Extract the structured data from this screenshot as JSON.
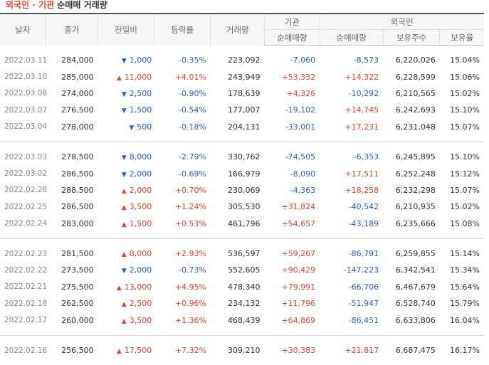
{
  "title": {
    "part1": "외국인 · 기관",
    "part2": " 순매매 거래량"
  },
  "headers": {
    "date": "날자",
    "close": "종가",
    "change": "전일비",
    "rate": "등락률",
    "volume": "거래량",
    "inst_group": "기관",
    "foreign_group": "외국인",
    "inst_net": "순매매량",
    "foreign_net": "순매매량",
    "foreign_hold": "보유주수",
    "foreign_ratio": "보유율"
  },
  "colors": {
    "up": "#e5412d",
    "down": "#2a5dd6"
  },
  "groups": [
    [
      {
        "date": "2022.03.11",
        "close": "284,000",
        "dir": "down",
        "change": "1,000",
        "rate": "-0.35%",
        "volume": "223,092",
        "inst": "-7,060",
        "foreign": "-8,573",
        "hold": "6,220,026",
        "ratio": "15.04%"
      },
      {
        "date": "2022.03.10",
        "close": "285,000",
        "dir": "up",
        "change": "11,000",
        "rate": "+4.01%",
        "volume": "243,949",
        "inst": "+53,332",
        "foreign": "+14,322",
        "hold": "6,228,599",
        "ratio": "15.06%"
      },
      {
        "date": "2022.03.08",
        "close": "274,000",
        "dir": "down",
        "change": "2,500",
        "rate": "-0.90%",
        "volume": "178,639",
        "inst": "+4,326",
        "foreign": "-10,292",
        "hold": "6,210,565",
        "ratio": "15.02%"
      },
      {
        "date": "2022.03.07",
        "close": "276,500",
        "dir": "down",
        "change": "1,500",
        "rate": "-0.54%",
        "volume": "177,007",
        "inst": "-19,102",
        "foreign": "+14,745",
        "hold": "6,242,693",
        "ratio": "15.10%"
      },
      {
        "date": "2022.03.04",
        "close": "278,000",
        "dir": "down",
        "change": "500",
        "rate": "-0.18%",
        "volume": "204,131",
        "inst": "-33,001",
        "foreign": "+17,231",
        "hold": "6,231,048",
        "ratio": "15.07%"
      }
    ],
    [
      {
        "date": "2022.03.03",
        "close": "278,500",
        "dir": "down",
        "change": "8,000",
        "rate": "-2.79%",
        "volume": "330,762",
        "inst": "-74,505",
        "foreign": "-6,353",
        "hold": "6,245,895",
        "ratio": "15.10%"
      },
      {
        "date": "2022.03.02",
        "close": "286,500",
        "dir": "down",
        "change": "2,000",
        "rate": "-0.69%",
        "volume": "166,979",
        "inst": "-8,090",
        "foreign": "+17,511",
        "hold": "6,252,248",
        "ratio": "15.12%"
      },
      {
        "date": "2022.02.28",
        "close": "288,500",
        "dir": "up",
        "change": "2,000",
        "rate": "+0.70%",
        "volume": "230,069",
        "inst": "-4,363",
        "foreign": "+18,258",
        "hold": "6,232,298",
        "ratio": "15.07%"
      },
      {
        "date": "2022.02.25",
        "close": "286,500",
        "dir": "up",
        "change": "3,500",
        "rate": "+1.24%",
        "volume": "305,530",
        "inst": "+31,824",
        "foreign": "-40,542",
        "hold": "6,210,935",
        "ratio": "15.02%"
      },
      {
        "date": "2022.02.24",
        "close": "283,000",
        "dir": "up",
        "change": "1,500",
        "rate": "+0.53%",
        "volume": "461,796",
        "inst": "+54,657",
        "foreign": "-43,189",
        "hold": "6,235,666",
        "ratio": "15.08%"
      }
    ],
    [
      {
        "date": "2022.02.23",
        "close": "281,500",
        "dir": "up",
        "change": "8,000",
        "rate": "+2.93%",
        "volume": "536,597",
        "inst": "+59,267",
        "foreign": "-86,791",
        "hold": "6,259,855",
        "ratio": "15.14%"
      },
      {
        "date": "2022.02.22",
        "close": "273,500",
        "dir": "down",
        "change": "2,000",
        "rate": "-0.73%",
        "volume": "552,605",
        "inst": "+90,429",
        "foreign": "-147,223",
        "hold": "6,342,541",
        "ratio": "15.34%"
      },
      {
        "date": "2022.02.21",
        "close": "275,500",
        "dir": "up",
        "change": "13,000",
        "rate": "+4.95%",
        "volume": "478,340",
        "inst": "+79,991",
        "foreign": "-66,706",
        "hold": "6,467,679",
        "ratio": "15.64%"
      },
      {
        "date": "2022.02.18",
        "close": "262,500",
        "dir": "up",
        "change": "2,500",
        "rate": "+0.96%",
        "volume": "234,132",
        "inst": "+11,796",
        "foreign": "-51,947",
        "hold": "6,528,740",
        "ratio": "15.79%"
      },
      {
        "date": "2022.02.17",
        "close": "260,000",
        "dir": "up",
        "change": "3,500",
        "rate": "+1.36%",
        "volume": "468,439",
        "inst": "+64,869",
        "foreign": "-86,451",
        "hold": "6,633,806",
        "ratio": "16.04%"
      }
    ],
    [
      {
        "date": "2022.02.16",
        "close": "256,500",
        "dir": "up",
        "change": "17,500",
        "rate": "+7.32%",
        "volume": "309,210",
        "inst": "+30,383",
        "foreign": "+21,817",
        "hold": "6,687,475",
        "ratio": "16.17%"
      }
    ]
  ]
}
